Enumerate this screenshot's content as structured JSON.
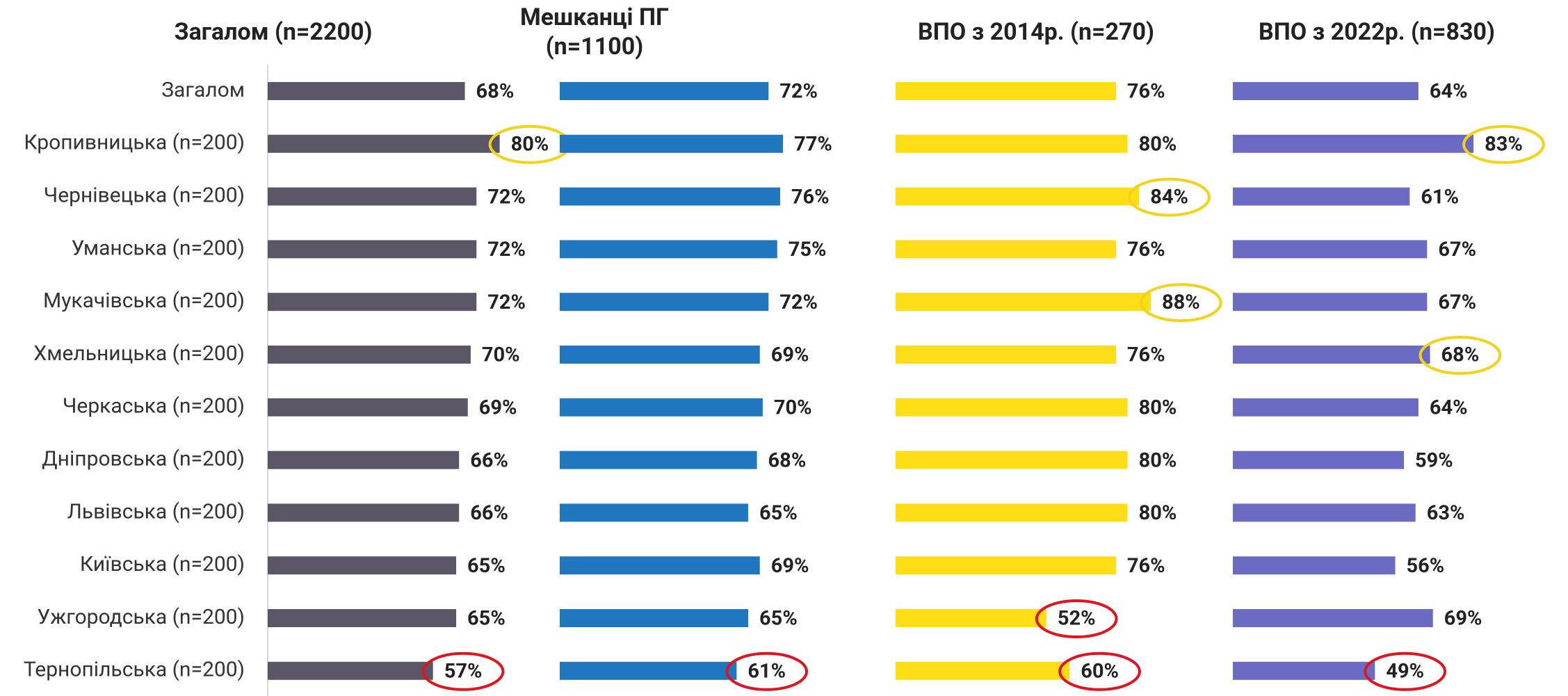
{
  "chart_data": {
    "type": "bar",
    "orientation": "horizontal",
    "categories": [
      "Загалом",
      "Кропивницька (n=200)",
      "Чернівецька (n=200)",
      "Уманська (n=200)",
      "Мукачівська (n=200)",
      "Хмельницька (n=200)",
      "Черкаська (n=200)",
      "Дніпровська (n=200)",
      "Львівська (n=200)",
      "Київська (n=200)",
      "Ужгородська (n=200)",
      "Тернопільська (n=200)"
    ],
    "xlim": [
      0,
      100
    ],
    "series": [
      {
        "name": "Загалом (n=2200)",
        "color": "#5b5666",
        "values": [
          68,
          80,
          72,
          72,
          72,
          70,
          69,
          66,
          66,
          65,
          65,
          57
        ],
        "value_labels": [
          "68%",
          "80%",
          "72%",
          "72%",
          "72%",
          "70%",
          "69%",
          "66%",
          "66%",
          "65%",
          "65%",
          "57%"
        ],
        "circled": [
          null,
          "#f5d21a",
          null,
          null,
          null,
          null,
          null,
          null,
          null,
          null,
          null,
          "#e0141e"
        ]
      },
      {
        "name": "Мешканці ПГ\n(n=1100)",
        "color": "#1f77c0",
        "values": [
          72,
          77,
          76,
          75,
          72,
          69,
          70,
          68,
          65,
          69,
          65,
          61
        ],
        "value_labels": [
          "72%",
          "77%",
          "76%",
          "75%",
          "72%",
          "69%",
          "70%",
          "68%",
          "65%",
          "69%",
          "65%",
          "61%"
        ],
        "circled": [
          null,
          null,
          null,
          null,
          null,
          null,
          null,
          null,
          null,
          null,
          null,
          "#e0141e"
        ]
      },
      {
        "name": "ВПО з 2014р. (n=270)",
        "color": "#ffde17",
        "values": [
          76,
          80,
          84,
          76,
          88,
          76,
          80,
          80,
          80,
          76,
          52,
          60
        ],
        "value_labels": [
          "76%",
          "80%",
          "84%",
          "76%",
          "88%",
          "76%",
          "80%",
          "80%",
          "80%",
          "76%",
          "52%",
          "60%"
        ],
        "circled": [
          null,
          null,
          "#f5d21a",
          null,
          "#f5d21a",
          null,
          null,
          null,
          null,
          null,
          "#e0141e",
          "#e0141e"
        ]
      },
      {
        "name": "ВПО з 2022р. (n=830)",
        "color": "#6b6bc4",
        "values": [
          64,
          83,
          61,
          67,
          67,
          68,
          64,
          59,
          63,
          56,
          69,
          49
        ],
        "value_labels": [
          "64%",
          "83%",
          "61%",
          "67%",
          "67%",
          "68%",
          "64%",
          "59%",
          "63%",
          "56%",
          "69%",
          "49%"
        ],
        "circled": [
          null,
          "#f5d21a",
          null,
          null,
          null,
          "#f5d21a",
          null,
          null,
          null,
          null,
          null,
          "#e0141e"
        ]
      }
    ]
  }
}
